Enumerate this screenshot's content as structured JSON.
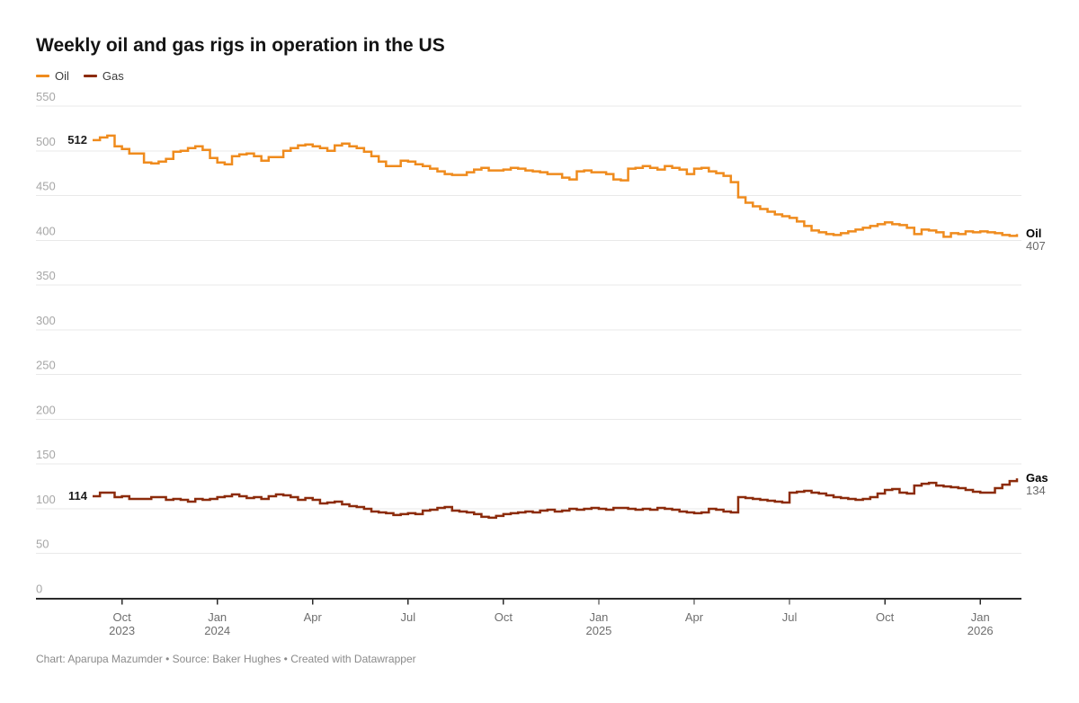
{
  "header": {
    "title": "Weekly oil and gas rigs in operation in the US"
  },
  "legend": {
    "items": [
      {
        "label": "Oil",
        "color": "#ef8b1d"
      },
      {
        "label": "Gas",
        "color": "#8c2b0b"
      }
    ]
  },
  "annotations": {
    "oil_start": "512",
    "gas_start": "114",
    "oil_end_name": "Oil",
    "oil_end_value": "407",
    "gas_end_name": "Gas",
    "gas_end_value": "134"
  },
  "footer": {
    "text": "Chart: Aparupa Mazumder • Source: Baker Hughes • Created with Datawrapper"
  },
  "chart_data": {
    "type": "line",
    "step": true,
    "title": "Weekly oil and gas rigs in operation in the US",
    "ylabel": "",
    "xlabel": "",
    "ylim": [
      0,
      550
    ],
    "y_ticks": [
      0,
      50,
      100,
      150,
      200,
      250,
      300,
      350,
      400,
      450,
      500,
      550
    ],
    "grid": true,
    "legend_position": "top-left",
    "x_unit": "weeks",
    "x_ticks": [
      {
        "week": 4,
        "label": "Oct",
        "year": "2023"
      },
      {
        "week": 17,
        "label": "Jan",
        "year": "2024"
      },
      {
        "week": 30,
        "label": "Apr",
        "year": ""
      },
      {
        "week": 43,
        "label": "Jul",
        "year": ""
      },
      {
        "week": 56,
        "label": "Oct",
        "year": ""
      },
      {
        "week": 69,
        "label": "Jan",
        "year": "2025"
      },
      {
        "week": 82,
        "label": "Apr",
        "year": ""
      },
      {
        "week": 95,
        "label": "Jul",
        "year": ""
      },
      {
        "week": 108,
        "label": "Oct",
        "year": ""
      },
      {
        "week": 121,
        "label": "Jan",
        "year": "2026"
      }
    ],
    "colors": {
      "grid": "#e9e9e9",
      "axis": "#2b2b2b",
      "y_tick_label": "#a6a6a6",
      "x_tick_label": "#6e6e6e"
    },
    "series": [
      {
        "name": "Oil",
        "color": "#ef8b1d",
        "start_label": 512,
        "end_label": 407,
        "values": [
          512,
          515,
          517,
          505,
          502,
          497,
          497,
          487,
          486,
          488,
          491,
          499,
          500,
          503,
          505,
          501,
          492,
          487,
          485,
          494,
          496,
          497,
          494,
          489,
          493,
          493,
          500,
          503,
          506,
          507,
          505,
          503,
          500,
          506,
          508,
          505,
          503,
          499,
          494,
          488,
          483,
          483,
          489,
          488,
          485,
          483,
          480,
          477,
          474,
          473,
          473,
          476,
          479,
          481,
          478,
          478,
          479,
          481,
          480,
          478,
          477,
          476,
          474,
          474,
          470,
          468,
          477,
          478,
          476,
          476,
          474,
          468,
          467,
          480,
          481,
          483,
          481,
          479,
          483,
          481,
          479,
          474,
          480,
          481,
          477,
          475,
          472,
          465,
          448,
          442,
          438,
          435,
          432,
          429,
          427,
          425,
          421,
          416,
          411,
          409,
          407,
          406,
          408,
          410,
          412,
          414,
          416,
          418,
          420,
          418,
          417,
          414,
          407,
          412,
          411,
          409,
          404,
          408,
          407,
          410,
          409,
          410,
          409,
          408,
          406,
          405,
          407
        ]
      },
      {
        "name": "Gas",
        "color": "#8c2b0b",
        "start_label": 114,
        "end_label": 134,
        "values": [
          114,
          118,
          118,
          113,
          114,
          111,
          111,
          111,
          113,
          113,
          110,
          111,
          110,
          108,
          111,
          110,
          111,
          113,
          114,
          116,
          114,
          112,
          113,
          111,
          114,
          116,
          115,
          113,
          110,
          112,
          110,
          106,
          107,
          108,
          105,
          103,
          102,
          100,
          97,
          96,
          95,
          93,
          94,
          95,
          94,
          98,
          99,
          101,
          102,
          98,
          97,
          96,
          94,
          91,
          90,
          92,
          94,
          95,
          96,
          97,
          96,
          98,
          99,
          97,
          98,
          100,
          99,
          100,
          101,
          100,
          99,
          101,
          101,
          100,
          99,
          100,
          99,
          101,
          100,
          99,
          97,
          96,
          95,
          96,
          100,
          99,
          97,
          96,
          113,
          112,
          111,
          110,
          109,
          108,
          107,
          118,
          119,
          120,
          118,
          117,
          115,
          113,
          112,
          111,
          110,
          111,
          113,
          117,
          121,
          122,
          118,
          117,
          126,
          128,
          129,
          126,
          125,
          124,
          123,
          121,
          119,
          118,
          118,
          123,
          127,
          131,
          134
        ]
      }
    ]
  }
}
